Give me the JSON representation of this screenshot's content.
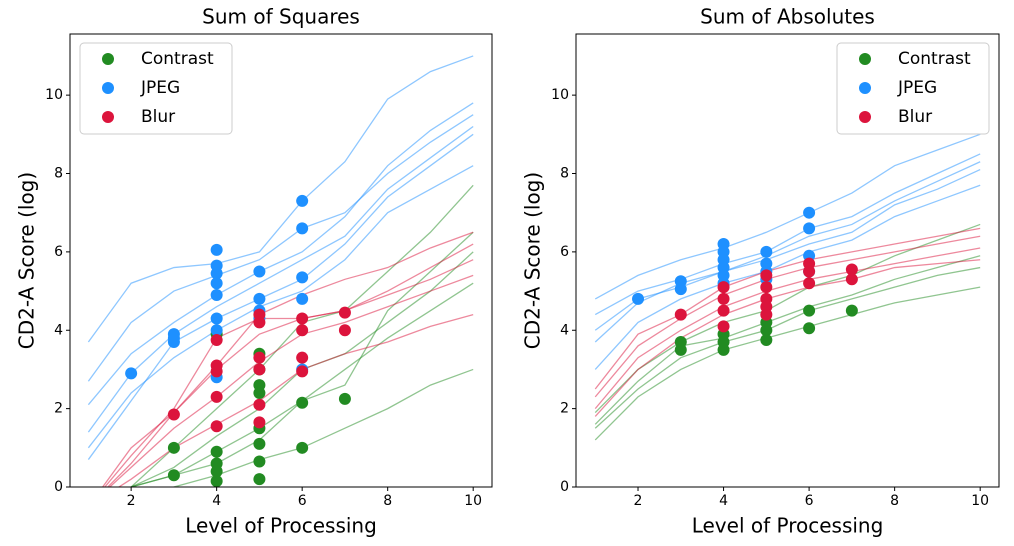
{
  "chart_data": [
    {
      "type": "scatter",
      "title": "Sum of Squares",
      "xlabel": "Level of Processing",
      "ylabel": "CD2-A Score (log)",
      "xlim": [
        0.57,
        10.44
      ],
      "ylim": [
        0,
        11.56
      ],
      "xticks": [
        2,
        4,
        6,
        8,
        10
      ],
      "yticks": [
        0,
        2,
        4,
        6,
        8,
        10
      ],
      "legend": "upper left",
      "x": [
        1,
        2,
        3,
        4,
        5,
        6,
        7,
        8,
        9,
        10
      ],
      "lines": [
        {
          "color": "#1e90ff",
          "values": [
            2.7,
            4.2,
            5.0,
            5.4,
            5.8,
            6.6,
            7.0,
            8.0,
            8.8,
            9.5
          ]
        },
        {
          "color": "#1e90ff",
          "values": [
            3.7,
            5.2,
            5.6,
            5.7,
            6.0,
            7.3,
            8.3,
            9.9,
            10.6,
            11.0
          ]
        },
        {
          "color": "#1e90ff",
          "values": [
            1.4,
            2.9,
            3.9,
            4.6,
            5.2,
            5.8,
            6.4,
            7.6,
            8.4,
            9.2
          ]
        },
        {
          "color": "#1e90ff",
          "values": [
            0.7,
            2.2,
            3.7,
            4.3,
            4.8,
            5.3,
            6.2,
            7.4,
            8.2,
            9.0
          ]
        },
        {
          "color": "#1e90ff",
          "values": [
            2.1,
            3.4,
            4.2,
            4.9,
            5.5,
            6.0,
            6.9,
            8.2,
            9.1,
            9.8
          ]
        },
        {
          "color": "#1e90ff",
          "values": [
            1.0,
            2.4,
            3.3,
            4.0,
            4.6,
            5.0,
            5.8,
            7.0,
            7.6,
            8.2
          ]
        },
        {
          "color": "#228b22",
          "values": [
            -1,
            0,
            0.3,
            0.9,
            1.5,
            2.2,
            2.6,
            4.5,
            5.5,
            6.5
          ]
        },
        {
          "color": "#228b22",
          "values": [
            -1,
            -0.5,
            0,
            0.3,
            0.7,
            1.0,
            1.5,
            2.0,
            2.6,
            3.0
          ]
        },
        {
          "color": "#228b22",
          "values": [
            -1,
            0,
            1.0,
            2.0,
            3.0,
            4.2,
            4.5,
            5.5,
            6.5,
            7.7
          ]
        },
        {
          "color": "#228b22",
          "values": [
            -1,
            0,
            0.5,
            1.3,
            2.0,
            3.0,
            3.4,
            4.2,
            5.0,
            6.0
          ]
        },
        {
          "color": "#228b22",
          "values": [
            -1,
            0,
            0.3,
            0.6,
            1.2,
            2.2,
            3.0,
            3.8,
            4.5,
            5.2
          ]
        },
        {
          "color": "#dc143c",
          "values": [
            -0.5,
            1.0,
            1.9,
            3.1,
            4.4,
            4.9,
            5.3,
            5.6,
            6.1,
            6.5
          ]
        },
        {
          "color": "#dc143c",
          "values": [
            -0.5,
            0.6,
            1.9,
            3.0,
            3.9,
            4.3,
            4.5,
            4.9,
            5.3,
            5.8
          ]
        },
        {
          "color": "#dc143c",
          "values": [
            -0.5,
            0.2,
            1.0,
            1.6,
            2.2,
            3.0,
            3.4,
            3.7,
            4.1,
            4.4
          ]
        },
        {
          "color": "#dc143c",
          "values": [
            -0.5,
            0.5,
            1.5,
            2.3,
            3.2,
            3.9,
            4.2,
            4.6,
            5.0,
            5.4
          ]
        },
        {
          "color": "#dc143c",
          "values": [
            -0.5,
            0.8,
            2.0,
            3.8,
            4.3,
            4.3,
            4.5,
            5.0,
            5.6,
            6.2
          ]
        }
      ],
      "series": [
        {
          "name": "Contrast",
          "color": "#228b22",
          "x": [
            3,
            3,
            4,
            4,
            4,
            4,
            4,
            5,
            5,
            5,
            5,
            5,
            5,
            5,
            5,
            6,
            6,
            7
          ],
          "values": [
            1.0,
            0.3,
            3.9,
            0.9,
            0.6,
            0.4,
            0.15,
            3.4,
            3.0,
            2.6,
            2.4,
            1.5,
            1.1,
            0.65,
            0.2,
            2.15,
            1.0,
            2.25
          ]
        },
        {
          "name": "JPEG",
          "color": "#1e90ff",
          "x": [
            2,
            3,
            3,
            3,
            4,
            4,
            4,
            4,
            4,
            4,
            4,
            4,
            5,
            5,
            5,
            5,
            6,
            6,
            6,
            6,
            6
          ],
          "values": [
            2.9,
            3.9,
            3.7,
            3.8,
            6.05,
            5.65,
            5.45,
            5.2,
            4.9,
            4.3,
            4.0,
            2.8,
            5.5,
            4.8,
            4.5,
            4.3,
            7.3,
            6.6,
            5.35,
            4.8,
            3.0
          ]
        },
        {
          "name": "Blur",
          "color": "#dc143c",
          "x": [
            3,
            4,
            4,
            4,
            4,
            4,
            5,
            5,
            5,
            5,
            5,
            5,
            6,
            6,
            6,
            6,
            7,
            7
          ],
          "values": [
            1.85,
            3.75,
            3.1,
            2.95,
            2.3,
            1.55,
            4.4,
            4.2,
            3.3,
            3.0,
            2.1,
            1.65,
            4.3,
            4.0,
            3.3,
            2.95,
            4.45,
            4.0
          ]
        }
      ]
    },
    {
      "type": "scatter",
      "title": "Sum of Absolutes",
      "xlabel": "Level of Processing",
      "ylabel": "CD2-A Score (log)",
      "xlim": [
        0.55,
        10.44
      ],
      "ylim": [
        0,
        11.56
      ],
      "xticks": [
        2,
        4,
        6,
        8,
        10
      ],
      "yticks": [
        0,
        2,
        4,
        6,
        8,
        10
      ],
      "legend": "upper right",
      "x": [
        1,
        2,
        3,
        4,
        5,
        6,
        7,
        8,
        9,
        10
      ],
      "lines": [
        {
          "color": "#1e90ff",
          "values": [
            4.8,
            5.4,
            5.8,
            6.1,
            6.5,
            7.0,
            7.5,
            8.2,
            8.6,
            9.0
          ]
        },
        {
          "color": "#1e90ff",
          "values": [
            4.4,
            5.0,
            5.3,
            5.7,
            6.0,
            6.6,
            6.9,
            7.5,
            8.0,
            8.5
          ]
        },
        {
          "color": "#1e90ff",
          "values": [
            3.7,
            4.7,
            5.2,
            5.5,
            5.8,
            6.2,
            6.5,
            7.2,
            7.6,
            8.1
          ]
        },
        {
          "color": "#1e90ff",
          "values": [
            3.0,
            4.2,
            4.8,
            5.2,
            5.5,
            6.0,
            6.3,
            6.9,
            7.3,
            7.7
          ]
        },
        {
          "color": "#1e90ff",
          "values": [
            4.0,
            4.8,
            5.1,
            5.5,
            5.9,
            6.4,
            6.7,
            7.3,
            7.8,
            8.3
          ]
        },
        {
          "color": "#228b22",
          "values": [
            1.6,
            2.7,
            3.6,
            3.8,
            4.2,
            4.6,
            4.9,
            5.3,
            5.6,
            5.9
          ]
        },
        {
          "color": "#228b22",
          "values": [
            1.2,
            2.3,
            3.0,
            3.5,
            3.8,
            4.1,
            4.4,
            4.7,
            4.9,
            5.1
          ]
        },
        {
          "color": "#228b22",
          "values": [
            1.9,
            3.0,
            3.7,
            4.2,
            4.5,
            5.1,
            5.4,
            5.9,
            6.3,
            6.7
          ]
        },
        {
          "color": "#228b22",
          "values": [
            1.5,
            2.5,
            3.3,
            3.7,
            4.0,
            4.5,
            4.8,
            5.1,
            5.4,
            5.6
          ]
        },
        {
          "color": "#dc143c",
          "values": [
            2.5,
            3.9,
            4.4,
            5.1,
            5.5,
            5.8,
            6.0,
            6.2,
            6.4,
            6.6
          ]
        },
        {
          "color": "#dc143c",
          "values": [
            2.0,
            3.3,
            4.0,
            4.6,
            5.0,
            5.3,
            5.5,
            5.7,
            5.9,
            6.1
          ]
        },
        {
          "color": "#dc143c",
          "values": [
            1.8,
            3.0,
            3.8,
            4.4,
            4.8,
            5.1,
            5.3,
            5.6,
            5.7,
            5.8
          ]
        },
        {
          "color": "#dc143c",
          "values": [
            2.3,
            3.6,
            4.3,
            4.9,
            5.3,
            5.6,
            5.8,
            6.0,
            6.2,
            6.4
          ]
        }
      ],
      "series": [
        {
          "name": "Contrast",
          "color": "#228b22",
          "x": [
            3,
            3,
            4,
            4,
            4,
            5,
            5,
            5,
            6,
            6,
            7
          ],
          "values": [
            3.7,
            3.5,
            3.9,
            3.7,
            3.5,
            4.2,
            4.0,
            3.75,
            4.5,
            4.05,
            4.5
          ]
        },
        {
          "name": "JPEG",
          "color": "#1e90ff",
          "x": [
            2,
            3,
            3,
            4,
            4,
            4,
            4,
            4,
            4,
            5,
            5,
            5,
            5,
            6,
            6,
            6,
            6
          ],
          "values": [
            4.8,
            5.25,
            5.05,
            6.2,
            6.0,
            5.8,
            5.6,
            5.4,
            5.2,
            6.0,
            5.7,
            5.5,
            5.3,
            7.0,
            6.6,
            5.9,
            5.5
          ]
        },
        {
          "name": "Blur",
          "color": "#dc143c",
          "x": [
            3,
            4,
            4,
            4,
            4,
            5,
            5,
            5,
            5,
            5,
            6,
            6,
            6,
            7,
            7
          ],
          "values": [
            4.4,
            5.1,
            4.8,
            4.5,
            4.1,
            5.4,
            5.1,
            4.8,
            4.6,
            4.4,
            5.7,
            5.5,
            5.2,
            5.55,
            5.3
          ]
        }
      ]
    }
  ]
}
